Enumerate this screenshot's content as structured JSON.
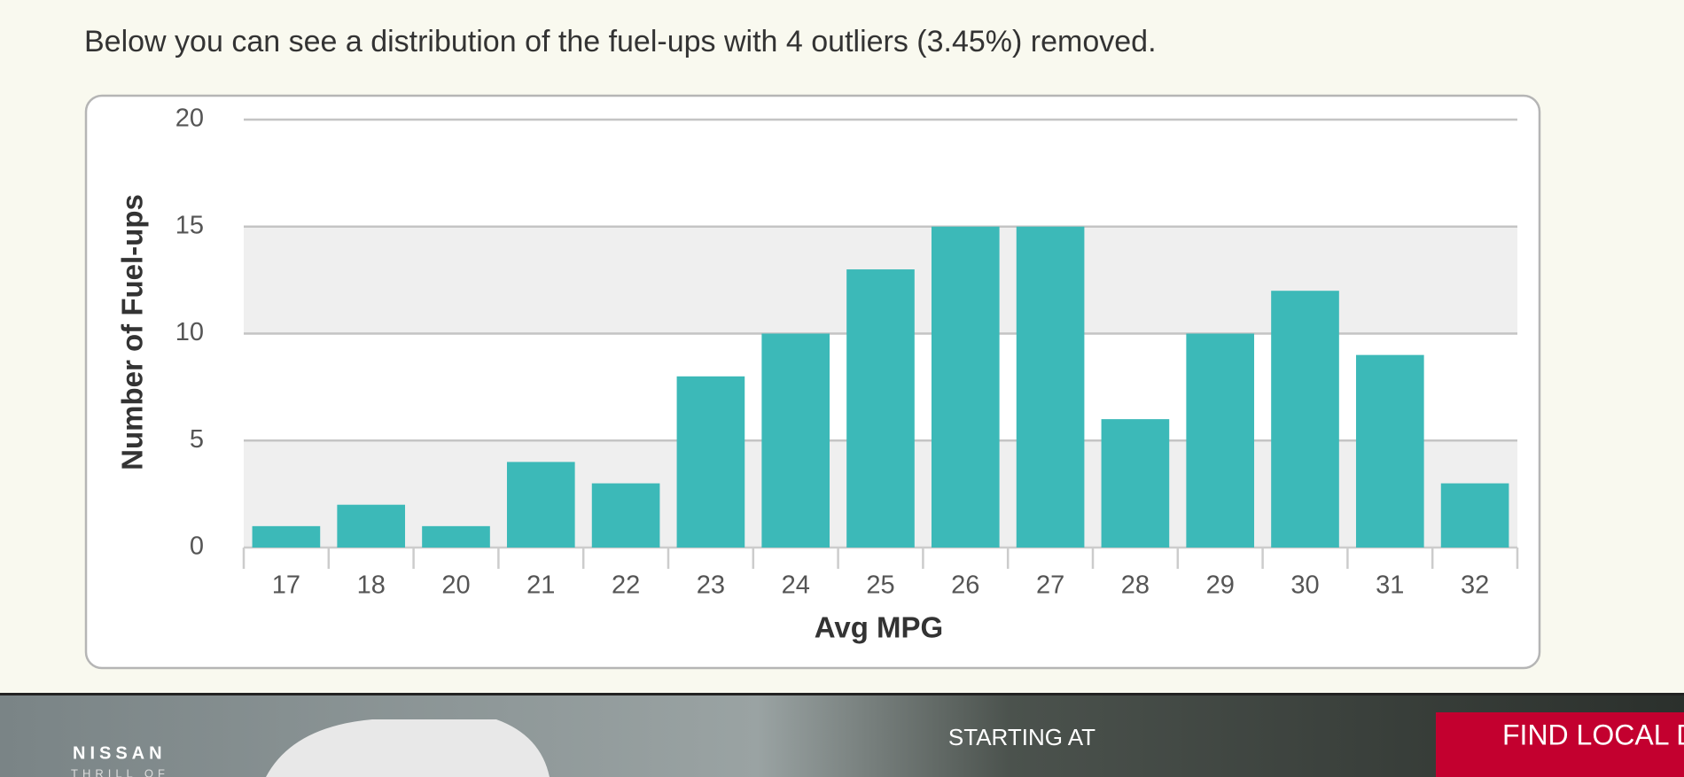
{
  "intro": "Below you can see a distribution of the fuel-ups with 4 outliers (3.45%) removed.",
  "chart_data": {
    "type": "bar",
    "xlabel": "Avg MPG",
    "ylabel": "Number of Fuel-ups",
    "categories": [
      "17",
      "18",
      "20",
      "21",
      "22",
      "23",
      "24",
      "25",
      "26",
      "27",
      "28",
      "29",
      "30",
      "31",
      "32"
    ],
    "values": [
      1,
      2,
      1,
      4,
      3,
      8,
      10,
      13,
      15,
      15,
      6,
      10,
      12,
      9,
      3
    ],
    "color": "#3cb9b8",
    "ylim": [
      0,
      20
    ],
    "yticks": [
      0,
      5,
      10,
      15,
      20
    ],
    "grid": true
  },
  "ad": {
    "brand": "NISSAN",
    "tagline": "THRILL OF",
    "offer": "STARTING AT",
    "button": "FIND LOCAL DEALERS"
  }
}
